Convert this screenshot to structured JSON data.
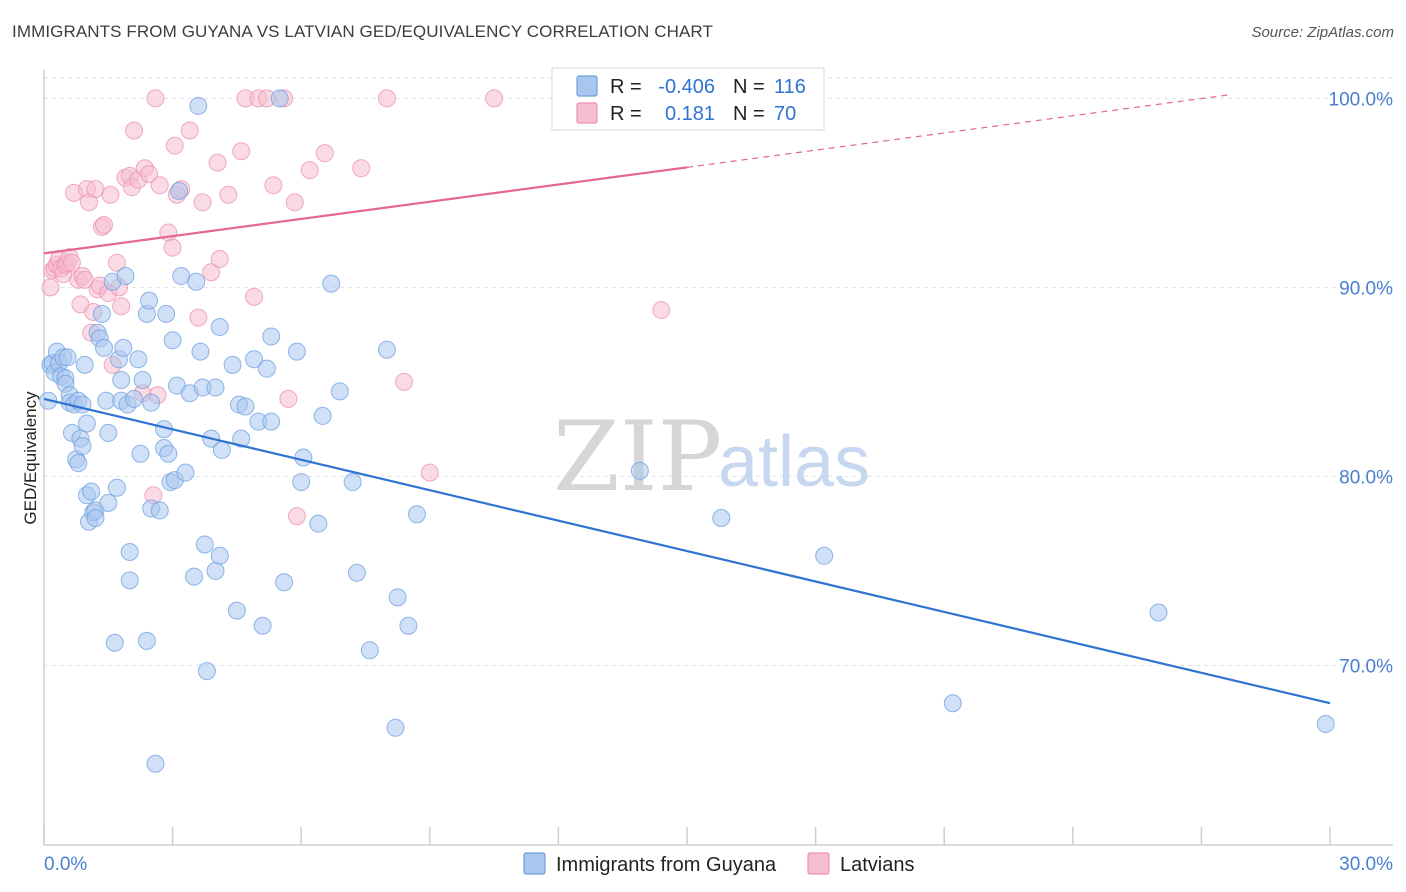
{
  "title": "IMMIGRANTS FROM GUYANA VS LATVIAN GED/EQUIVALENCY CORRELATION CHART",
  "source": "Source: ZipAtlas.com",
  "watermark": {
    "zip": "ZIP",
    "atlas": "atlas"
  },
  "legend_top": {
    "rows": [
      {
        "r_label": "R = ",
        "r_value": "-0.406",
        "n_label": "N = ",
        "n_value": "116"
      },
      {
        "r_label": "R = ",
        "r_value": "0.181",
        "n_label": "N = ",
        "n_value": "70"
      }
    ]
  },
  "legend_bottom": {
    "items": [
      "Immigrants from Guyana",
      "Latvians"
    ]
  },
  "colors": {
    "blue_fill": "#a9c6ee",
    "blue_stroke": "#6e9fe0",
    "blue_line": "#2f73d3",
    "pink_fill": "#f6bed0",
    "pink_stroke": "#ec8fb0",
    "pink_line": "#e4688f",
    "tick_text": "#4a7fd0",
    "grid": "#e2e2e2"
  },
  "chart_data": {
    "type": "scatter",
    "title": "IMMIGRANTS FROM GUYANA VS LATVIAN GED/EQUIVALENCY CORRELATION CHART",
    "xlabel": "",
    "ylabel": "GED/Equivalency",
    "xlim": [
      0,
      30
    ],
    "ylim": [
      60.5,
      101.5
    ],
    "x_tick_labels": [
      "0.0%",
      "30.0%"
    ],
    "y_ticks": [
      70,
      80,
      90,
      100
    ],
    "y_tick_labels": [
      "70.0%",
      "80.0%",
      "90.0%",
      "100.0%"
    ],
    "grid": true,
    "legend_position": "top-center",
    "series": [
      {
        "name": "Immigrants from Guyana",
        "r": -0.406,
        "n": 116,
        "trend": {
          "x": [
            0,
            30
          ],
          "y": [
            84.1,
            68.0
          ],
          "dashed_from": null
        },
        "points": [
          [
            0.1,
            84.0
          ],
          [
            0.15,
            85.9
          ],
          [
            0.2,
            86.0
          ],
          [
            0.25,
            85.5
          ],
          [
            0.3,
            86.6
          ],
          [
            0.35,
            86.0
          ],
          [
            0.4,
            85.3
          ],
          [
            0.45,
            86.3
          ],
          [
            0.5,
            85.2
          ],
          [
            0.5,
            84.9
          ],
          [
            0.55,
            86.3
          ],
          [
            0.6,
            84.3
          ],
          [
            0.6,
            83.9
          ],
          [
            0.65,
            82.3
          ],
          [
            0.7,
            83.8
          ],
          [
            0.75,
            80.9
          ],
          [
            0.8,
            84.0
          ],
          [
            0.8,
            80.7
          ],
          [
            0.85,
            82.0
          ],
          [
            0.9,
            81.6
          ],
          [
            0.9,
            83.8
          ],
          [
            0.95,
            85.9
          ],
          [
            1.0,
            79.0
          ],
          [
            1.0,
            82.8
          ],
          [
            1.05,
            77.6
          ],
          [
            1.1,
            79.2
          ],
          [
            1.15,
            78.1
          ],
          [
            1.2,
            78.2
          ],
          [
            1.2,
            77.8
          ],
          [
            1.25,
            87.6
          ],
          [
            1.3,
            87.3
          ],
          [
            1.35,
            88.6
          ],
          [
            1.4,
            86.8
          ],
          [
            1.45,
            84.0
          ],
          [
            1.5,
            78.6
          ],
          [
            1.5,
            82.3
          ],
          [
            1.6,
            90.3
          ],
          [
            1.65,
            71.2
          ],
          [
            1.7,
            79.4
          ],
          [
            1.75,
            86.2
          ],
          [
            1.8,
            85.1
          ],
          [
            1.8,
            84.0
          ],
          [
            1.85,
            86.8
          ],
          [
            1.9,
            90.6
          ],
          [
            1.95,
            83.8
          ],
          [
            2.0,
            74.5
          ],
          [
            2.0,
            76.0
          ],
          [
            2.1,
            84.1
          ],
          [
            2.2,
            86.2
          ],
          [
            2.25,
            81.2
          ],
          [
            2.3,
            85.1
          ],
          [
            2.4,
            88.6
          ],
          [
            2.4,
            71.3
          ],
          [
            2.45,
            89.3
          ],
          [
            2.5,
            78.3
          ],
          [
            2.5,
            83.9
          ],
          [
            2.6,
            64.8
          ],
          [
            2.7,
            78.2
          ],
          [
            2.8,
            81.5
          ],
          [
            2.8,
            82.5
          ],
          [
            2.85,
            88.6
          ],
          [
            2.9,
            81.2
          ],
          [
            2.95,
            79.7
          ],
          [
            3.0,
            87.2
          ],
          [
            3.05,
            79.8
          ],
          [
            3.1,
            84.8
          ],
          [
            3.15,
            95.1
          ],
          [
            3.2,
            90.6
          ],
          [
            3.3,
            80.2
          ],
          [
            3.4,
            84.4
          ],
          [
            3.5,
            74.7
          ],
          [
            3.55,
            90.3
          ],
          [
            3.6,
            99.6
          ],
          [
            3.65,
            86.6
          ],
          [
            3.7,
            84.7
          ],
          [
            3.75,
            76.4
          ],
          [
            3.8,
            69.7
          ],
          [
            3.9,
            82.0
          ],
          [
            4.0,
            75.0
          ],
          [
            4.0,
            84.7
          ],
          [
            4.1,
            75.8
          ],
          [
            4.1,
            87.9
          ],
          [
            4.15,
            81.4
          ],
          [
            4.4,
            85.9
          ],
          [
            4.5,
            72.9
          ],
          [
            4.55,
            83.8
          ],
          [
            4.6,
            82.0
          ],
          [
            4.7,
            83.7
          ],
          [
            4.9,
            86.2
          ],
          [
            5.0,
            82.9
          ],
          [
            5.1,
            72.1
          ],
          [
            5.2,
            85.7
          ],
          [
            5.3,
            87.4
          ],
          [
            5.3,
            82.9
          ],
          [
            5.5,
            100.0
          ],
          [
            5.6,
            74.4
          ],
          [
            5.9,
            86.6
          ],
          [
            6.0,
            79.7
          ],
          [
            6.05,
            81.0
          ],
          [
            6.4,
            77.5
          ],
          [
            6.5,
            83.2
          ],
          [
            6.7,
            90.2
          ],
          [
            6.9,
            84.5
          ],
          [
            7.2,
            79.7
          ],
          [
            7.3,
            74.9
          ],
          [
            7.6,
            70.8
          ],
          [
            8.0,
            86.7
          ],
          [
            8.2,
            66.7
          ],
          [
            8.25,
            73.6
          ],
          [
            8.5,
            72.1
          ],
          [
            8.7,
            78.0
          ],
          [
            13.9,
            80.3
          ],
          [
            15.8,
            77.8
          ],
          [
            18.2,
            75.8
          ],
          [
            21.2,
            68.0
          ],
          [
            26.0,
            72.8
          ],
          [
            29.9,
            66.9
          ]
        ]
      },
      {
        "name": "Latvians",
        "r": 0.181,
        "n": 70,
        "trend": {
          "x": [
            0,
            30
          ],
          "y": [
            91.8,
            100.9
          ],
          "dashed_from": 15.0
        },
        "points": [
          [
            0.15,
            90.0
          ],
          [
            0.2,
            90.9
          ],
          [
            0.25,
            91.0
          ],
          [
            0.3,
            91.2
          ],
          [
            0.35,
            91.5
          ],
          [
            0.4,
            91.0
          ],
          [
            0.45,
            90.7
          ],
          [
            0.5,
            91.2
          ],
          [
            0.55,
            91.3
          ],
          [
            0.6,
            91.6
          ],
          [
            0.65,
            91.3
          ],
          [
            0.7,
            95.0
          ],
          [
            0.8,
            90.4
          ],
          [
            0.85,
            89.1
          ],
          [
            0.9,
            90.6
          ],
          [
            0.95,
            90.4
          ],
          [
            1.0,
            95.2
          ],
          [
            1.05,
            94.5
          ],
          [
            1.1,
            87.6
          ],
          [
            1.15,
            88.7
          ],
          [
            1.2,
            95.2
          ],
          [
            1.25,
            89.9
          ],
          [
            1.3,
            90.1
          ],
          [
            1.35,
            93.2
          ],
          [
            1.4,
            93.3
          ],
          [
            1.5,
            89.7
          ],
          [
            1.55,
            94.9
          ],
          [
            1.6,
            85.9
          ],
          [
            1.7,
            91.3
          ],
          [
            1.75,
            90.0
          ],
          [
            1.8,
            89.0
          ],
          [
            1.9,
            95.8
          ],
          [
            2.0,
            95.9
          ],
          [
            2.05,
            95.3
          ],
          [
            2.1,
            98.3
          ],
          [
            2.2,
            95.7
          ],
          [
            2.3,
            84.4
          ],
          [
            2.35,
            96.3
          ],
          [
            2.45,
            96.0
          ],
          [
            2.55,
            79.0
          ],
          [
            2.6,
            100.0
          ],
          [
            2.65,
            84.3
          ],
          [
            2.7,
            95.4
          ],
          [
            2.9,
            92.9
          ],
          [
            3.0,
            92.1
          ],
          [
            3.05,
            97.5
          ],
          [
            3.1,
            94.9
          ],
          [
            3.2,
            95.2
          ],
          [
            3.4,
            98.3
          ],
          [
            3.6,
            88.4
          ],
          [
            3.7,
            94.5
          ],
          [
            3.9,
            90.8
          ],
          [
            4.05,
            96.6
          ],
          [
            4.1,
            91.5
          ],
          [
            4.3,
            94.9
          ],
          [
            4.6,
            97.2
          ],
          [
            4.7,
            100.0
          ],
          [
            4.9,
            89.5
          ],
          [
            5.0,
            100.0
          ],
          [
            5.2,
            100.0
          ],
          [
            5.35,
            95.4
          ],
          [
            5.6,
            100.0
          ],
          [
            5.7,
            84.1
          ],
          [
            5.85,
            94.5
          ],
          [
            5.9,
            77.9
          ],
          [
            6.2,
            96.2
          ],
          [
            6.55,
            97.1
          ],
          [
            7.4,
            96.3
          ],
          [
            8.0,
            100.0
          ],
          [
            8.4,
            85.0
          ],
          [
            9.0,
            80.2
          ],
          [
            10.5,
            100.0
          ],
          [
            14.4,
            88.8
          ]
        ]
      }
    ]
  }
}
